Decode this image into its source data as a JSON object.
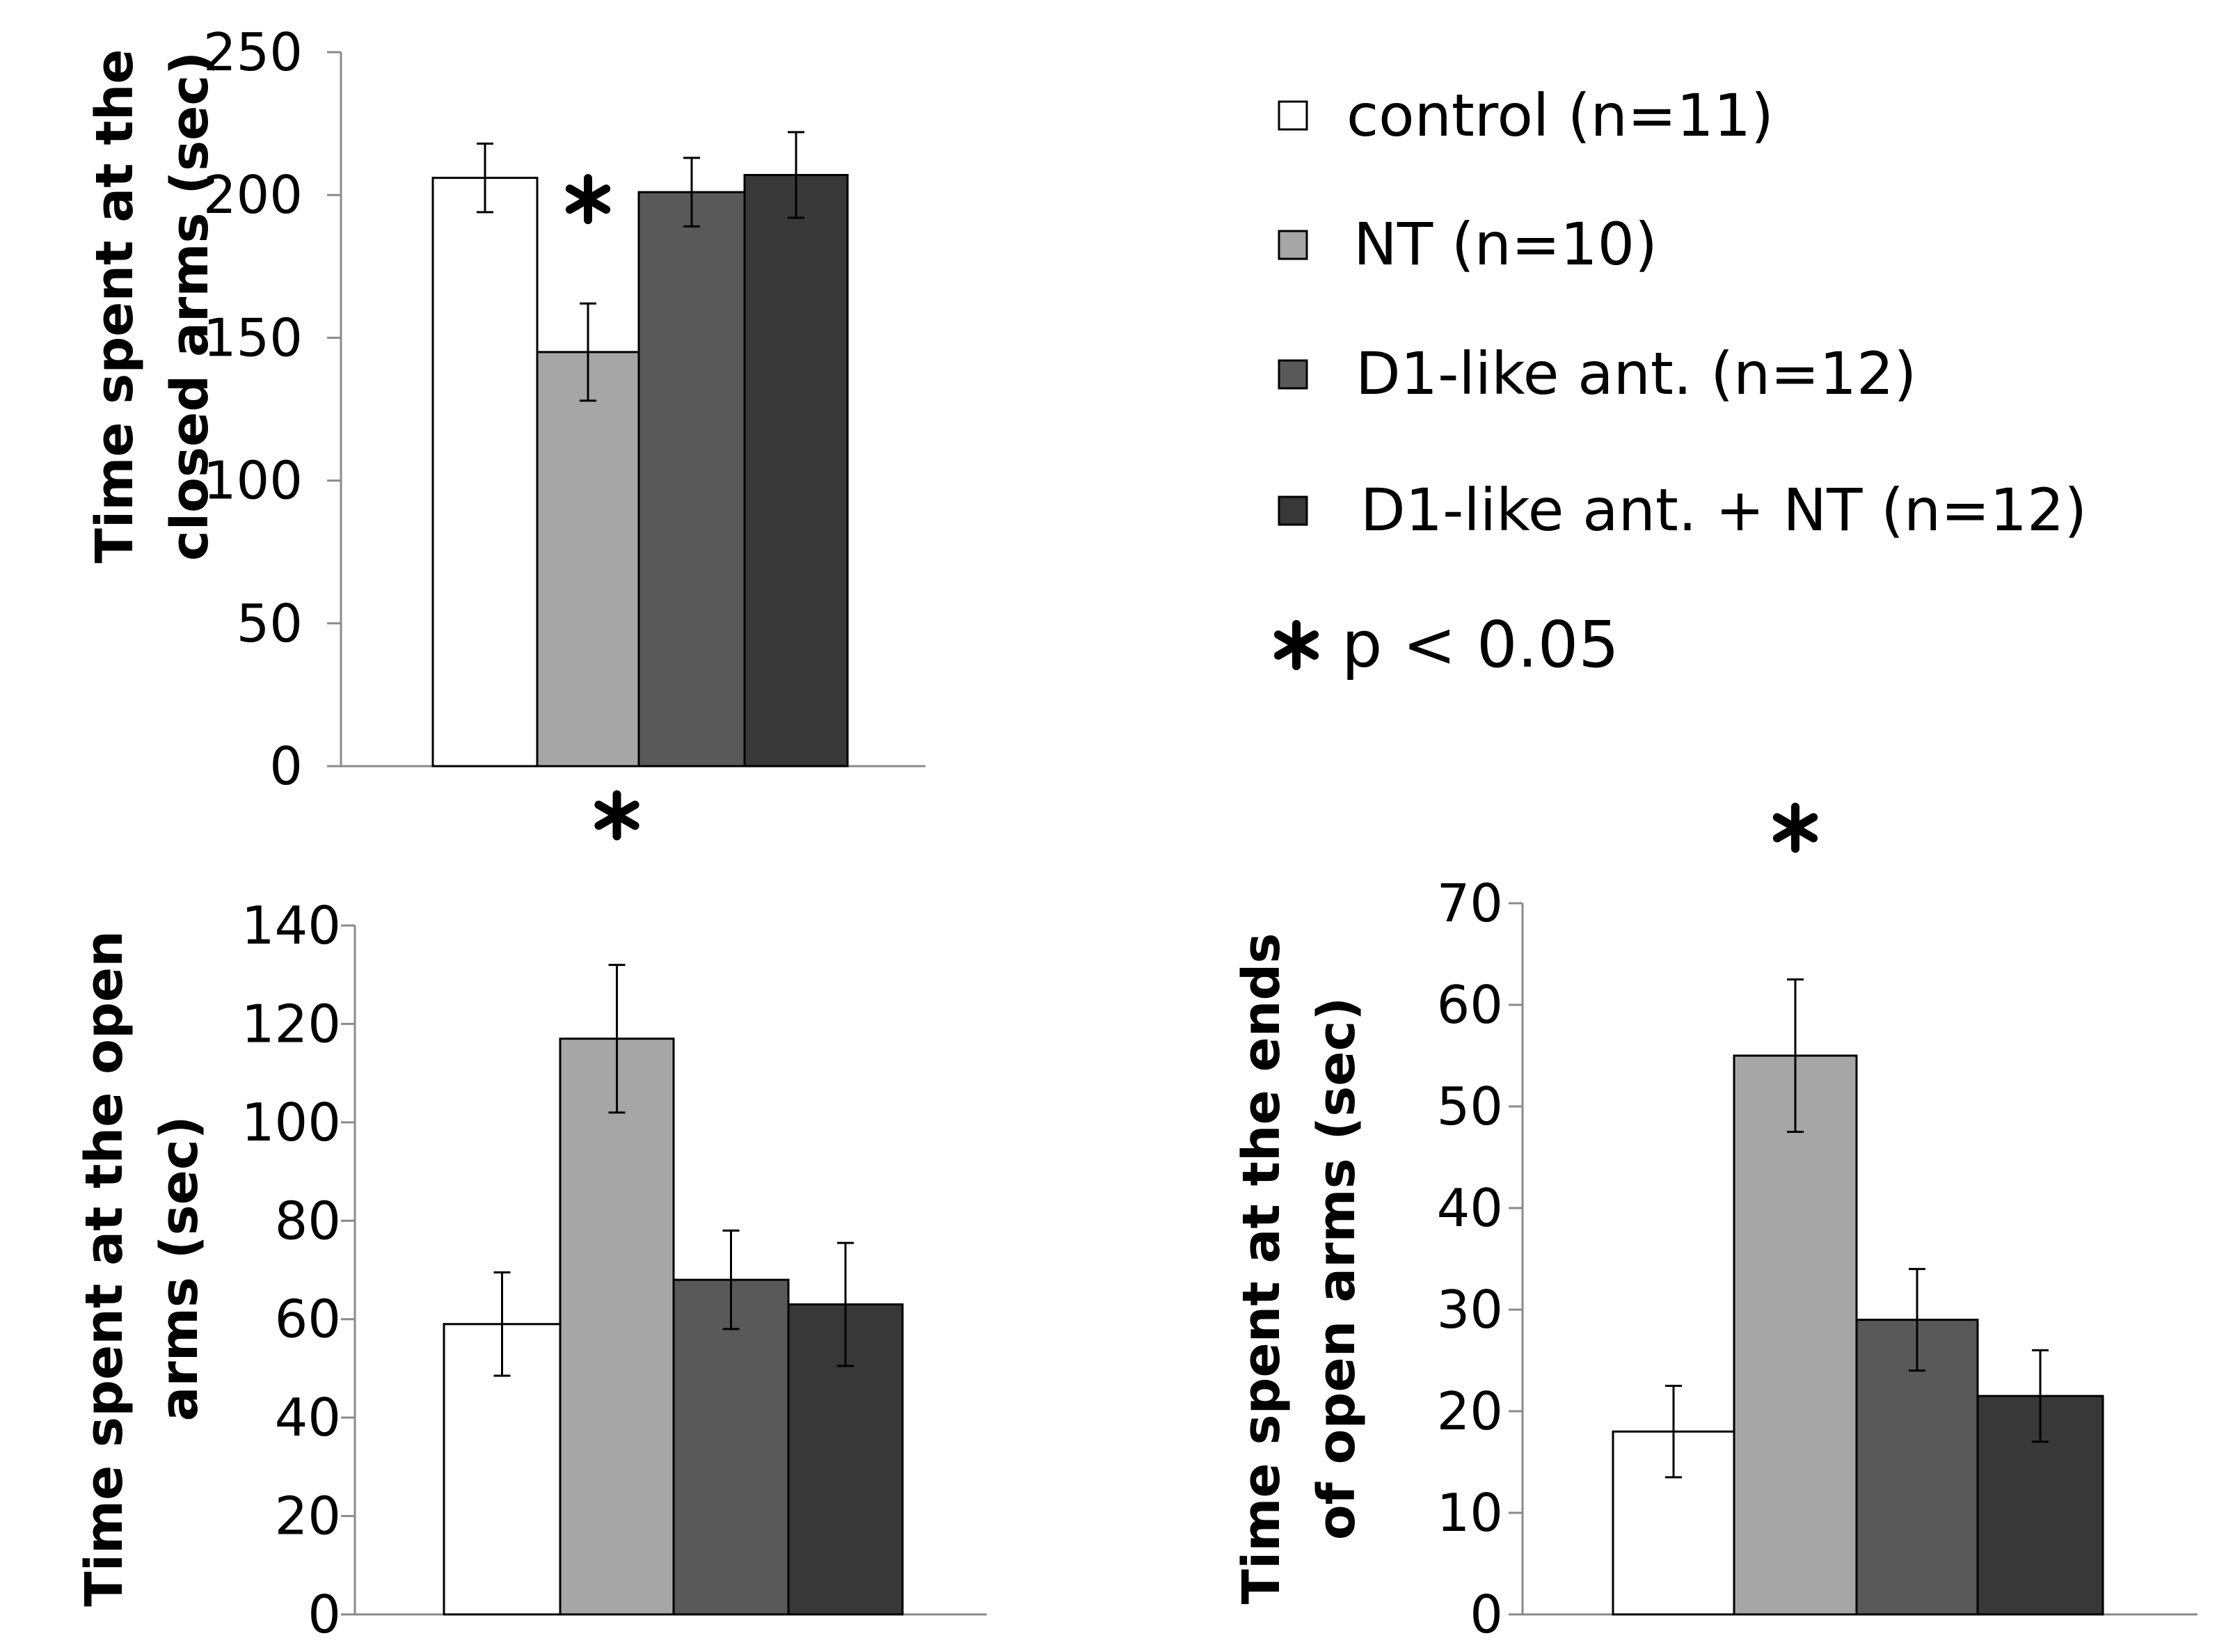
{
  "legend": {
    "items": [
      {
        "label": "control (n=11)",
        "color": "#ffffff"
      },
      {
        "label": "NT (n=10)",
        "color": "#a6a6a6"
      },
      {
        "label": "D1-like ant. (n=12)",
        "color": "#595959"
      },
      {
        "label": "D1-like ant. + NT (n=12)",
        "color": "#383838"
      }
    ],
    "significance": "p < 0.05"
  },
  "chart_data": [
    {
      "type": "bar",
      "title": "",
      "ylabel": [
        "Time spent at the",
        "closed arms (sec)"
      ],
      "xlabel": "",
      "categories": [
        "control (n=11)",
        "NT (n=10)",
        "D1-like ant. (n=12)",
        "D1-like ant. + NT (n=12)"
      ],
      "values": [
        206,
        145,
        201,
        207
      ],
      "errors": [
        12,
        17,
        12,
        15
      ],
      "ylim": [
        0,
        250
      ],
      "yticks": [
        0,
        50,
        100,
        150,
        200,
        250
      ],
      "significant": [
        false,
        true,
        false,
        false
      ],
      "colors": [
        "#ffffff",
        "#a6a6a6",
        "#595959",
        "#383838"
      ]
    },
    {
      "type": "bar",
      "title": "",
      "ylabel": [
        "Time spent at the open",
        "arms (sec)"
      ],
      "xlabel": "",
      "categories": [
        "control (n=11)",
        "NT (n=10)",
        "D1-like ant. (n=12)",
        "D1-like ant. + NT (n=12)"
      ],
      "values": [
        59,
        117,
        68,
        63
      ],
      "errors": [
        10.5,
        15,
        10,
        12.5
      ],
      "ylim": [
        0,
        140
      ],
      "yticks": [
        0,
        20,
        40,
        60,
        80,
        100,
        120,
        140
      ],
      "significant": [
        false,
        true,
        false,
        false
      ],
      "colors": [
        "#ffffff",
        "#a6a6a6",
        "#595959",
        "#383838"
      ]
    },
    {
      "type": "bar",
      "title": "",
      "ylabel": [
        "Time spent at the ends",
        "of open arms (sec)"
      ],
      "xlabel": "",
      "categories": [
        "control (n=11)",
        "NT (n=10)",
        "D1-like ant. (n=12)",
        "D1-like ant. + NT (n=12)"
      ],
      "values": [
        18,
        55,
        29,
        21.5
      ],
      "errors": [
        4.5,
        7.5,
        5,
        4.5
      ],
      "ylim": [
        0,
        70
      ],
      "yticks": [
        0,
        10,
        20,
        30,
        40,
        50,
        60,
        70
      ],
      "significant": [
        false,
        true,
        false,
        false
      ],
      "colors": [
        "#ffffff",
        "#a6a6a6",
        "#595959",
        "#383838"
      ]
    }
  ]
}
